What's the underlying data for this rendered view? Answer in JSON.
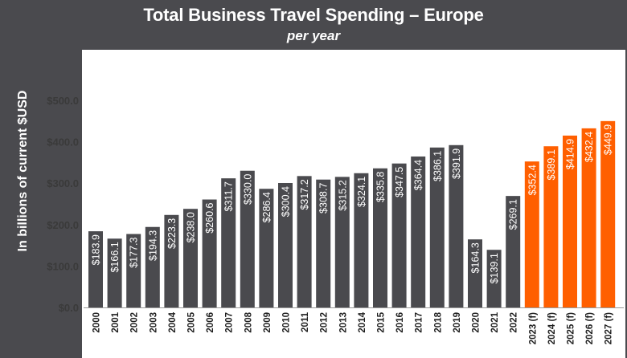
{
  "chart_data": {
    "type": "bar",
    "title": "Total Business Travel Spending – Europe",
    "subtitle": "per year",
    "ylabel": "In billions of current $USD",
    "xlabel": "",
    "ylim": [
      0,
      500
    ],
    "yticks": [
      0,
      100,
      200,
      300,
      400,
      500
    ],
    "ytick_labels": [
      "$0.0",
      "$100.0",
      "$200.0",
      "$300.0",
      "$400.0",
      "$500.0"
    ],
    "grid": false,
    "categories": [
      "2000",
      "2001",
      "2002",
      "2003",
      "2004",
      "2005",
      "2006",
      "2007",
      "2008",
      "2009",
      "2010",
      "2011",
      "2012",
      "2013",
      "2014",
      "2015",
      "2016",
      "2017",
      "2018",
      "2019",
      "2020",
      "2021",
      "2022",
      "2023 (f)",
      "2024 (f)",
      "2025 (f)",
      "2026 (f)",
      "2027 (f)"
    ],
    "values": [
      183.9,
      166.1,
      177.3,
      194.3,
      223.3,
      238.0,
      260.6,
      311.7,
      330.0,
      286.4,
      300.4,
      317.2,
      308.7,
      315.2,
      324.1,
      335.8,
      347.5,
      364.4,
      386.1,
      391.9,
      164.3,
      139.1,
      269.1,
      352.4,
      389.1,
      414.9,
      432.4,
      449.9
    ],
    "value_labels": [
      "$183.9",
      "$166.1",
      "$177.3",
      "$194.3",
      "$223.3",
      "$238.0",
      "$260.6",
      "$311.7",
      "$330.0",
      "$286.4",
      "$300.4",
      "$317.2",
      "$308.7",
      "$315.2",
      "$324.1",
      "$335.8",
      "$347.5",
      "$364.4",
      "$386.1",
      "$391.9",
      "$164.3",
      "$139.1",
      "$269.1",
      "$352.4",
      "$389.1",
      "$414.9",
      "$432.4",
      "$449.9"
    ],
    "forecast": [
      false,
      false,
      false,
      false,
      false,
      false,
      false,
      false,
      false,
      false,
      false,
      false,
      false,
      false,
      false,
      false,
      false,
      false,
      false,
      false,
      false,
      false,
      false,
      true,
      true,
      true,
      true,
      true
    ],
    "colors": {
      "actual": "#4a4a4e",
      "forecast": "#ff5f00"
    }
  }
}
